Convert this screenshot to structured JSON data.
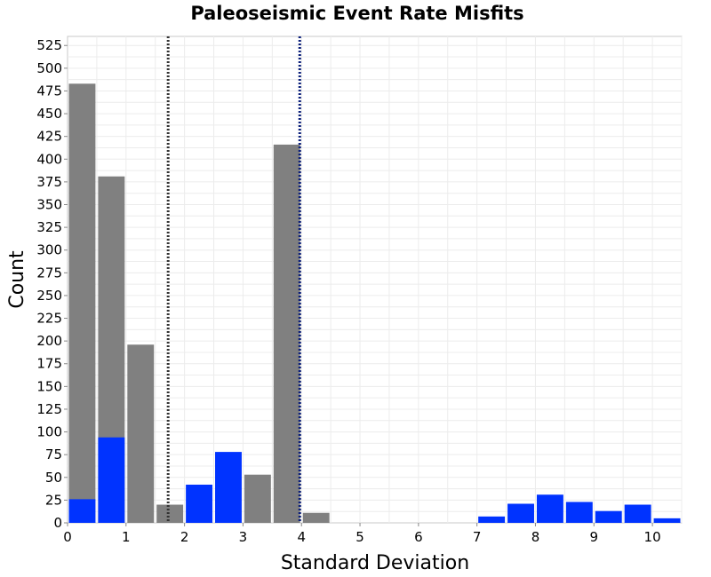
{
  "chart_data": {
    "type": "bar",
    "title": "Paleoseismic Event Rate Misfits",
    "xlabel": "Standard Deviation",
    "ylabel": "Count",
    "xlim": [
      0,
      10.5
    ],
    "ylim": [
      0,
      535
    ],
    "bin_width": 0.5,
    "grid": true,
    "x_ticks": [
      "0",
      "1",
      "2",
      "3",
      "4",
      "5",
      "6",
      "7",
      "8",
      "9",
      "10"
    ],
    "y_ticks": [
      "0",
      "25",
      "50",
      "75",
      "100",
      "125",
      "150",
      "175",
      "200",
      "225",
      "250",
      "275",
      "300",
      "325",
      "350",
      "375",
      "400",
      "425",
      "450",
      "475",
      "500",
      "525"
    ],
    "series": [
      {
        "color": "#808080",
        "bins": [
          {
            "x": 0.25,
            "value": 483
          },
          {
            "x": 0.75,
            "value": 381
          },
          {
            "x": 1.25,
            "value": 196
          },
          {
            "x": 1.75,
            "value": 20
          },
          {
            "x": 3.25,
            "value": 53
          },
          {
            "x": 3.75,
            "value": 416
          },
          {
            "x": 4.25,
            "value": 11
          }
        ]
      },
      {
        "color": "#0033ff",
        "bins": [
          {
            "x": 0.25,
            "value": 26
          },
          {
            "x": 0.75,
            "value": 94
          },
          {
            "x": 2.25,
            "value": 42
          },
          {
            "x": 2.75,
            "value": 78
          },
          {
            "x": 7.25,
            "value": 7
          },
          {
            "x": 7.75,
            "value": 21
          },
          {
            "x": 8.25,
            "value": 31
          },
          {
            "x": 8.75,
            "value": 23
          },
          {
            "x": 9.25,
            "value": 13
          },
          {
            "x": 9.75,
            "value": 20
          },
          {
            "x": 10.25,
            "value": 5
          }
        ]
      }
    ],
    "reference_lines": [
      {
        "x": 1.72,
        "color": "#333333",
        "style": "dotted"
      },
      {
        "x": 3.97,
        "color": "#0b1f7a",
        "style": "dotted"
      }
    ]
  }
}
